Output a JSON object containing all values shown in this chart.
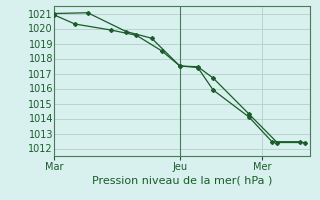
{
  "title": "",
  "xlabel": "Pression niveau de la mer( hPa )",
  "background_color": "#d8f0ee",
  "grid_color": "#b8d4cc",
  "line_color": "#1a5c2a",
  "spine_color": "#4a7a5a",
  "xlim": [
    0,
    10.0
  ],
  "ylim": [
    1011.5,
    1021.5
  ],
  "yticks": [
    1012,
    1013,
    1014,
    1015,
    1016,
    1017,
    1018,
    1019,
    1020,
    1021
  ],
  "xtick_positions": [
    0.0,
    4.9,
    8.1
  ],
  "xtick_labels": [
    "Mar",
    "Jeu",
    "Mer"
  ],
  "vline_x": 4.9,
  "series1_x": [
    0.0,
    0.8,
    2.2,
    3.2,
    4.2,
    4.9,
    5.6,
    6.2,
    7.6,
    8.7,
    9.8
  ],
  "series1_y": [
    1020.9,
    1020.3,
    1019.9,
    1019.55,
    1018.5,
    1017.5,
    1017.45,
    1016.7,
    1014.3,
    1012.4,
    1012.4
  ],
  "series2_x": [
    0.0,
    1.3,
    2.8,
    3.8,
    4.9,
    5.6,
    6.2,
    7.6,
    8.5,
    9.6
  ],
  "series2_y": [
    1021.0,
    1021.05,
    1019.8,
    1019.35,
    1017.5,
    1017.4,
    1015.9,
    1014.1,
    1012.45,
    1012.45
  ],
  "ylabel_fontsize": 7,
  "xlabel_fontsize": 8,
  "tick_fontsize": 7
}
